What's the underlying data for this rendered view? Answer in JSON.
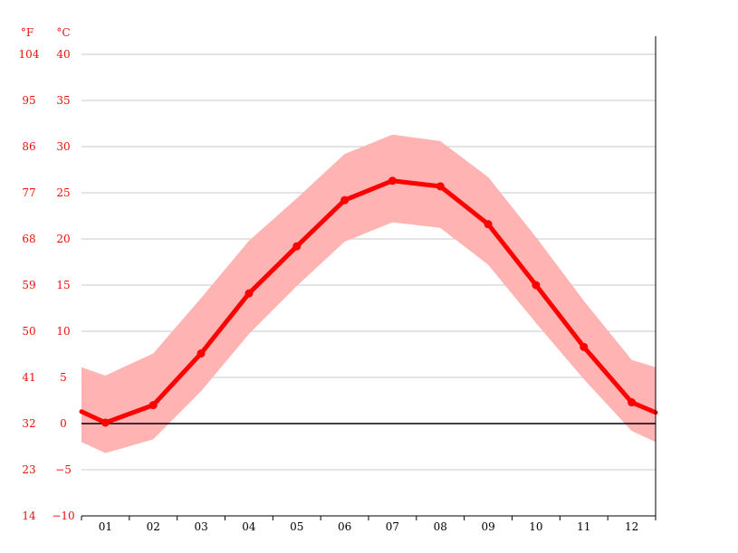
{
  "chart_data": {
    "type": "line",
    "unit_labels": {
      "fahrenheit": "°F",
      "celsius": "°C"
    },
    "categories": [
      "01",
      "02",
      "03",
      "04",
      "05",
      "06",
      "07",
      "08",
      "09",
      "10",
      "11",
      "12"
    ],
    "series": [
      {
        "values": [
          0.1,
          2.0,
          7.6,
          14.1,
          19.2,
          24.2,
          26.3,
          25.7,
          21.6,
          15.0,
          8.3,
          2.3
        ]
      }
    ],
    "band": {
      "upper": [
        5.2,
        7.6,
        13.6,
        19.8,
        24.4,
        29.2,
        31.3,
        30.6,
        26.7,
        20.2,
        13.3,
        6.9
      ],
      "lower": [
        -3.2,
        -1.7,
        3.5,
        9.7,
        14.9,
        19.7,
        21.8,
        21.2,
        17.2,
        10.9,
        4.8,
        -0.8
      ]
    },
    "edge_values": {
      "line": [
        1.3,
        1.2
      ],
      "upper": [
        6.1,
        6.1
      ],
      "lower": [
        -2.0,
        -2.0
      ]
    },
    "y_left_ticks": [
      "104",
      "95",
      "86",
      "77",
      "68",
      "59",
      "50",
      "41",
      "32",
      "23",
      "14"
    ],
    "y_right_ticks": [
      "40",
      "35",
      "30",
      "25",
      "20",
      "15",
      "10",
      "5",
      "0",
      "−5",
      "−10"
    ],
    "ylim": [
      -10,
      40
    ],
    "grid": true,
    "colors": {
      "line": "#ff0000",
      "band": "#ffb3b3",
      "tick_text": "#e8120c",
      "grid": "#c8c8c8",
      "zero_line": "#000000"
    }
  }
}
